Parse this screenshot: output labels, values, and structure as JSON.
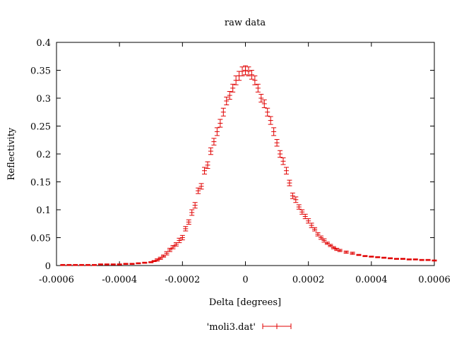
{
  "chart_data": {
    "type": "scatter",
    "title": "raw data",
    "xlabel": "Delta [degrees]",
    "ylabel": "Reflectivity",
    "xlim": [
      -0.0006,
      0.0006
    ],
    "ylim": [
      0,
      0.4
    ],
    "grid": false,
    "legend_position": "bottom-center",
    "error_bars": true,
    "series_color": "#e00000",
    "x_ticks": [
      {
        "value": -0.0006,
        "label": "-0.0006"
      },
      {
        "value": -0.0004,
        "label": "-0.0004"
      },
      {
        "value": -0.0002,
        "label": "-0.0002"
      },
      {
        "value": 0,
        "label": "0"
      },
      {
        "value": 0.0002,
        "label": "0.0002"
      },
      {
        "value": 0.0004,
        "label": "0.0004"
      },
      {
        "value": 0.0006,
        "label": "0.0006"
      }
    ],
    "y_ticks": [
      {
        "value": 0,
        "label": "0"
      },
      {
        "value": 0.05,
        "label": "0.05"
      },
      {
        "value": 0.1,
        "label": "0.1"
      },
      {
        "value": 0.15,
        "label": "0.15"
      },
      {
        "value": 0.2,
        "label": "0.2"
      },
      {
        "value": 0.25,
        "label": "0.25"
      },
      {
        "value": 0.3,
        "label": "0.3"
      },
      {
        "value": 0.35,
        "label": "0.35"
      },
      {
        "value": 0.4,
        "label": "0.4"
      }
    ],
    "series": [
      {
        "name": "'moli3.dat'",
        "x": [
          -0.00058,
          -0.00056,
          -0.00054,
          -0.00052,
          -0.0005,
          -0.00048,
          -0.00046,
          -0.00044,
          -0.00042,
          -0.0004,
          -0.00038,
          -0.00036,
          -0.00034,
          -0.00032,
          -0.0003,
          -0.00029,
          -0.00028,
          -0.00027,
          -0.00026,
          -0.00025,
          -0.00024,
          -0.00023,
          -0.00022,
          -0.00021,
          -0.0002,
          -0.00019,
          -0.00018,
          -0.00017,
          -0.00016,
          -0.00015,
          -0.00014,
          -0.00013,
          -0.00012,
          -0.00011,
          -0.0001,
          -9e-05,
          -8e-05,
          -7e-05,
          -6e-05,
          -5e-05,
          -4e-05,
          -3e-05,
          -2e-05,
          -1e-05,
          0,
          1e-05,
          2e-05,
          3e-05,
          4e-05,
          5e-05,
          6e-05,
          7e-05,
          8e-05,
          9e-05,
          0.0001,
          0.00011,
          0.00012,
          0.00013,
          0.00014,
          0.00015,
          0.00016,
          0.00017,
          0.00018,
          0.00019,
          0.0002,
          0.00021,
          0.00022,
          0.00023,
          0.00024,
          0.00025,
          0.00026,
          0.00027,
          0.00028,
          0.00029,
          0.0003,
          0.00032,
          0.00034,
          0.00036,
          0.00038,
          0.0004,
          0.00042,
          0.00044,
          0.00046,
          0.00048,
          0.0005,
          0.00052,
          0.00054,
          0.00056,
          0.00058,
          0.0006
        ],
        "y": [
          0.001,
          0.001,
          0.001,
          0.001,
          0.001,
          0.001,
          0.002,
          0.002,
          0.002,
          0.002,
          0.003,
          0.003,
          0.004,
          0.005,
          0.006,
          0.008,
          0.01,
          0.013,
          0.017,
          0.022,
          0.028,
          0.033,
          0.038,
          0.045,
          0.05,
          0.066,
          0.078,
          0.095,
          0.108,
          0.134,
          0.142,
          0.17,
          0.18,
          0.205,
          0.222,
          0.24,
          0.255,
          0.275,
          0.295,
          0.305,
          0.318,
          0.332,
          0.34,
          0.348,
          0.35,
          0.348,
          0.342,
          0.332,
          0.318,
          0.3,
          0.29,
          0.275,
          0.26,
          0.24,
          0.22,
          0.2,
          0.187,
          0.17,
          0.148,
          0.125,
          0.118,
          0.105,
          0.096,
          0.088,
          0.08,
          0.072,
          0.065,
          0.056,
          0.05,
          0.045,
          0.04,
          0.036,
          0.032,
          0.029,
          0.027,
          0.024,
          0.022,
          0.019,
          0.017,
          0.016,
          0.015,
          0.014,
          0.013,
          0.012,
          0.012,
          0.011,
          0.011,
          0.01,
          0.01,
          0.009
        ],
        "y_error": [
          0.001,
          0.001,
          0.001,
          0.001,
          0.001,
          0.001,
          0.001,
          0.001,
          0.001,
          0.001,
          0.001,
          0.001,
          0.001,
          0.001,
          0.001,
          0.001,
          0.002,
          0.002,
          0.002,
          0.003,
          0.003,
          0.003,
          0.003,
          0.004,
          0.004,
          0.004,
          0.004,
          0.005,
          0.005,
          0.005,
          0.005,
          0.006,
          0.006,
          0.006,
          0.006,
          0.007,
          0.007,
          0.007,
          0.007,
          0.007,
          0.007,
          0.008,
          0.008,
          0.008,
          0.008,
          0.008,
          0.008,
          0.008,
          0.007,
          0.007,
          0.007,
          0.007,
          0.007,
          0.007,
          0.006,
          0.006,
          0.006,
          0.006,
          0.005,
          0.005,
          0.005,
          0.004,
          0.004,
          0.004,
          0.004,
          0.004,
          0.003,
          0.003,
          0.003,
          0.003,
          0.002,
          0.002,
          0.002,
          0.002,
          0.002,
          0.002,
          0.002,
          0.001,
          0.001,
          0.001,
          0.001,
          0.001,
          0.001,
          0.001,
          0.001,
          0.001,
          0.001,
          0.001,
          0.001,
          0.001
        ]
      }
    ]
  }
}
